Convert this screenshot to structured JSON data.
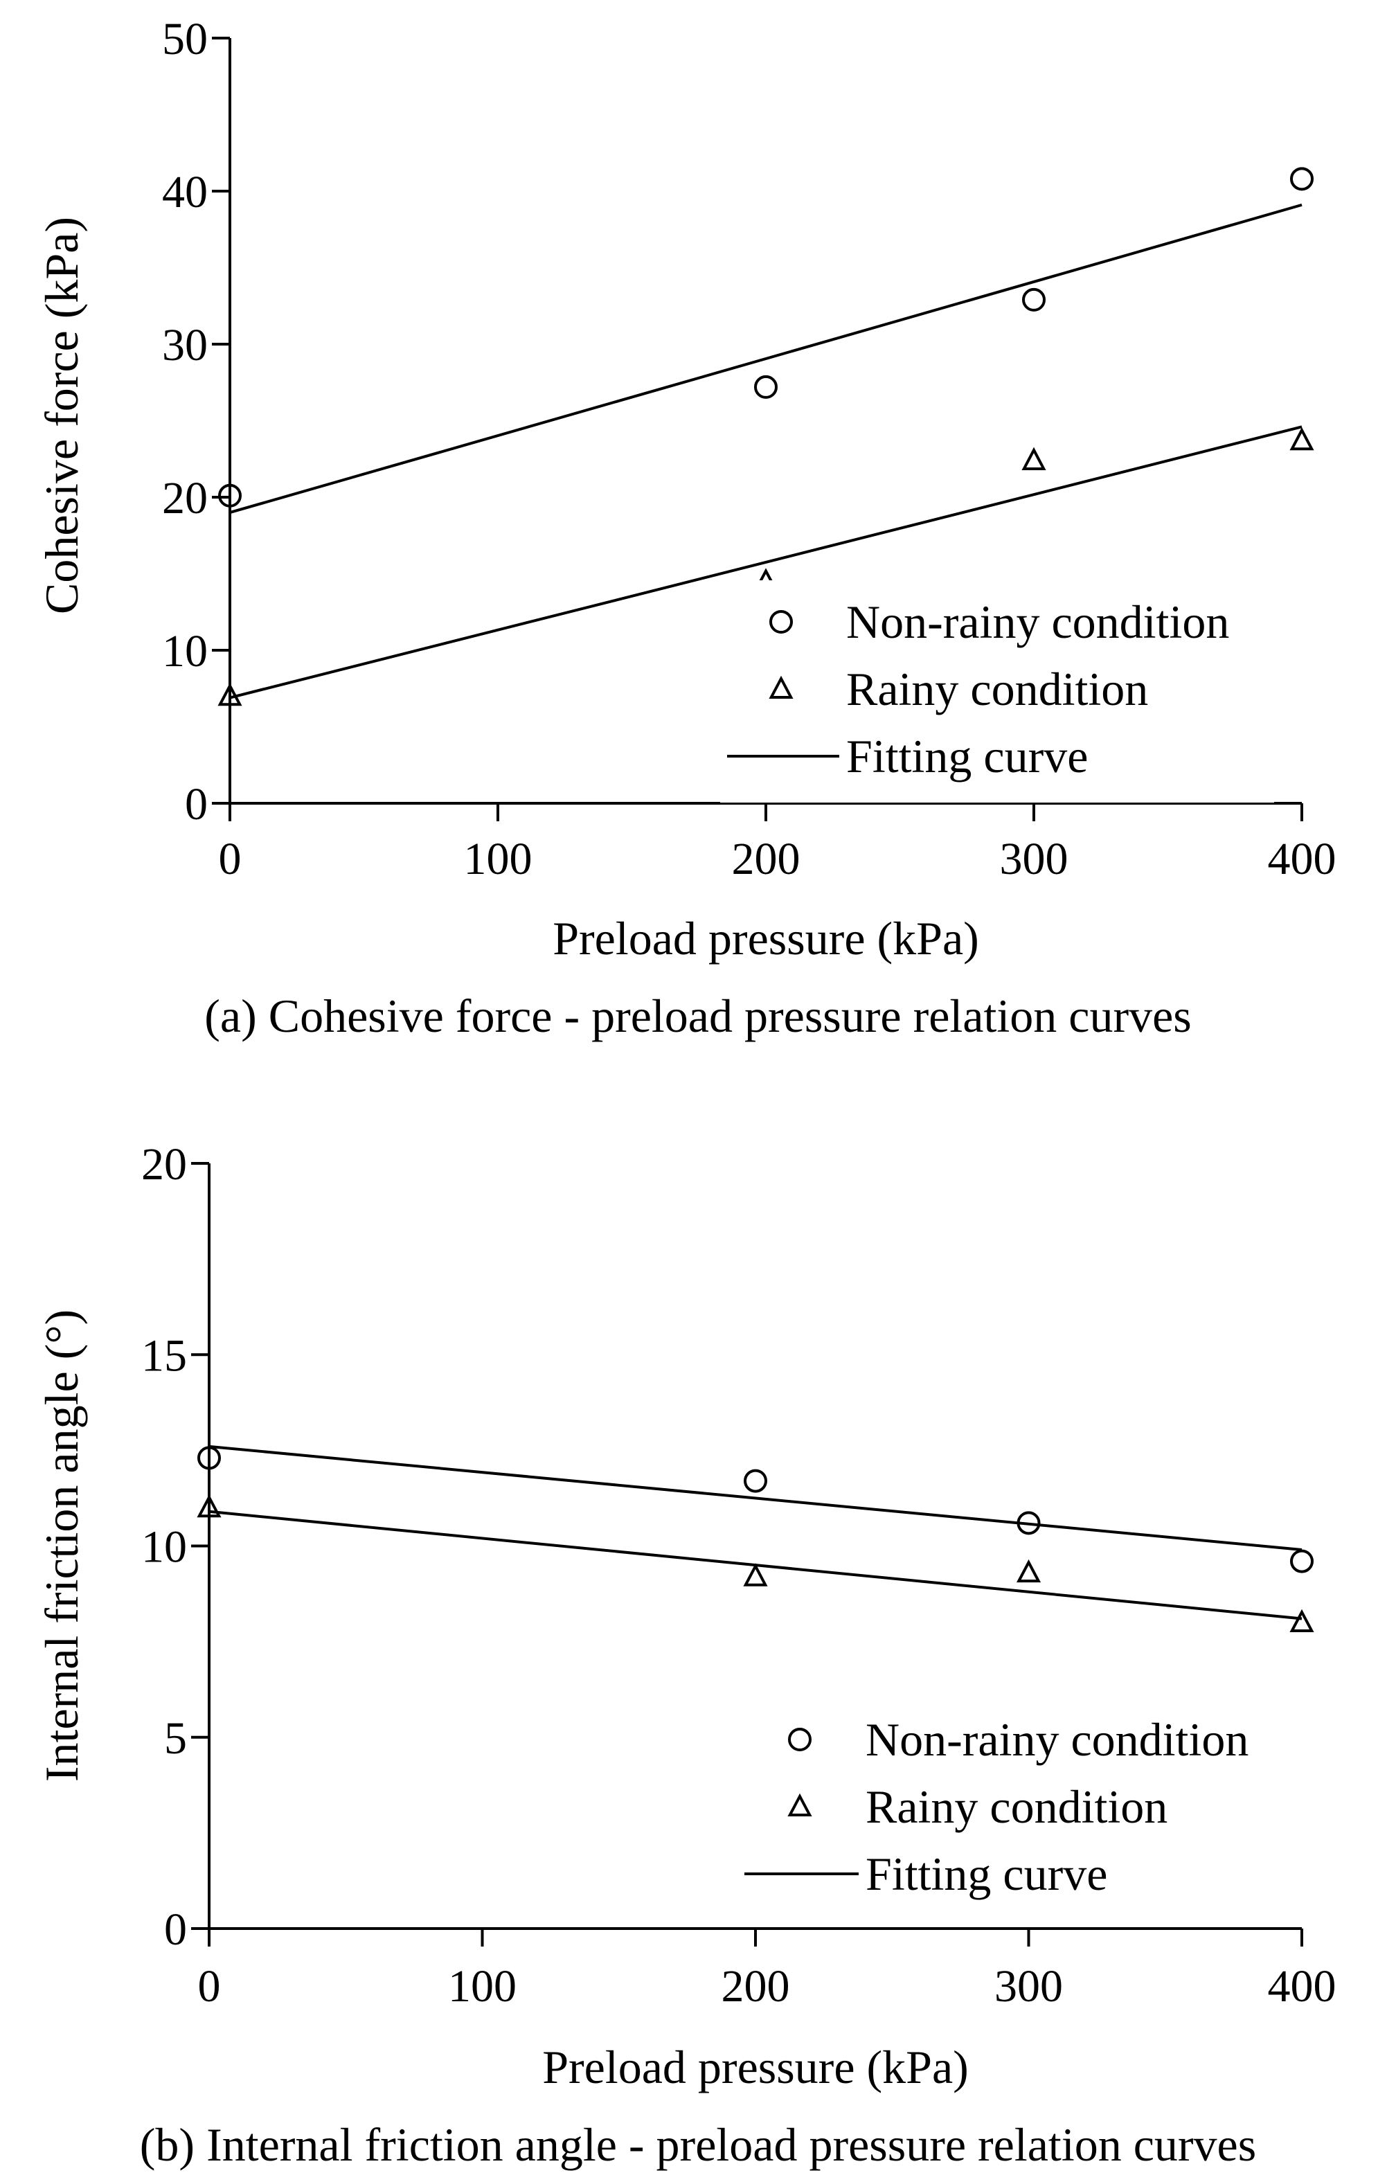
{
  "colors": {
    "ink": "#000000",
    "background": "#ffffff"
  },
  "chart_data": [
    {
      "type": "scatter",
      "caption": "(a) Cohesive force - preload pressure relation curves",
      "xlabel": "Preload pressure (kPa)",
      "ylabel": "Cohesive force (kPa)",
      "xlim": [
        0,
        400
      ],
      "ylim": [
        0,
        50
      ],
      "xticks": [
        0,
        100,
        200,
        300,
        400
      ],
      "yticks": [
        0,
        10,
        20,
        30,
        40,
        50
      ],
      "grid": false,
      "legend_position": "bottom-right",
      "legend": {
        "non_rainy": "Non-rainy condition",
        "rainy": "Rainy condition",
        "fit": "Fitting curve"
      },
      "series": [
        {
          "key": "non_rainy",
          "name": "Non-rainy condition",
          "marker": "circle",
          "x": [
            0,
            200,
            300,
            400
          ],
          "y": [
            20.1,
            27.2,
            32.9,
            40.8
          ]
        },
        {
          "key": "rainy",
          "name": "Rainy condition",
          "marker": "triangle",
          "x": [
            0,
            200,
            300,
            400
          ],
          "y": [
            7.0,
            14.5,
            22.4,
            23.7
          ]
        }
      ],
      "fits": [
        {
          "name": "Fitting curve",
          "series": "non_rainy",
          "x": [
            0,
            400
          ],
          "y": [
            19.0,
            39.1
          ]
        },
        {
          "name": "Fitting curve",
          "series": "rainy",
          "x": [
            0,
            400
          ],
          "y": [
            6.9,
            24.6
          ]
        }
      ]
    },
    {
      "type": "scatter",
      "caption": "(b) Internal friction angle - preload pressure relation curves",
      "xlabel": "Preload pressure (kPa)",
      "ylabel": "Internal friction angle (°)",
      "xlim": [
        0,
        400
      ],
      "ylim": [
        0,
        20
      ],
      "xticks": [
        0,
        100,
        200,
        300,
        400
      ],
      "yticks": [
        0,
        5,
        10,
        15,
        20
      ],
      "grid": false,
      "legend_position": "bottom-right",
      "legend": {
        "non_rainy": "Non-rainy condition",
        "rainy": "Rainy condition",
        "fit": "Fitting curve"
      },
      "series": [
        {
          "key": "non_rainy",
          "name": "Non-rainy condition",
          "marker": "circle",
          "x": [
            0,
            200,
            300,
            400
          ],
          "y": [
            12.3,
            11.7,
            10.6,
            9.6
          ]
        },
        {
          "key": "rainy",
          "name": "Rainy condition",
          "marker": "triangle",
          "x": [
            0,
            200,
            300,
            400
          ],
          "y": [
            11.0,
            9.2,
            9.3,
            8.0
          ]
        }
      ],
      "fits": [
        {
          "name": "Fitting curve",
          "series": "non_rainy",
          "x": [
            0,
            400
          ],
          "y": [
            12.6,
            9.9
          ]
        },
        {
          "name": "Fitting curve",
          "series": "rainy",
          "x": [
            0,
            400
          ],
          "y": [
            10.9,
            8.1
          ]
        }
      ]
    }
  ]
}
